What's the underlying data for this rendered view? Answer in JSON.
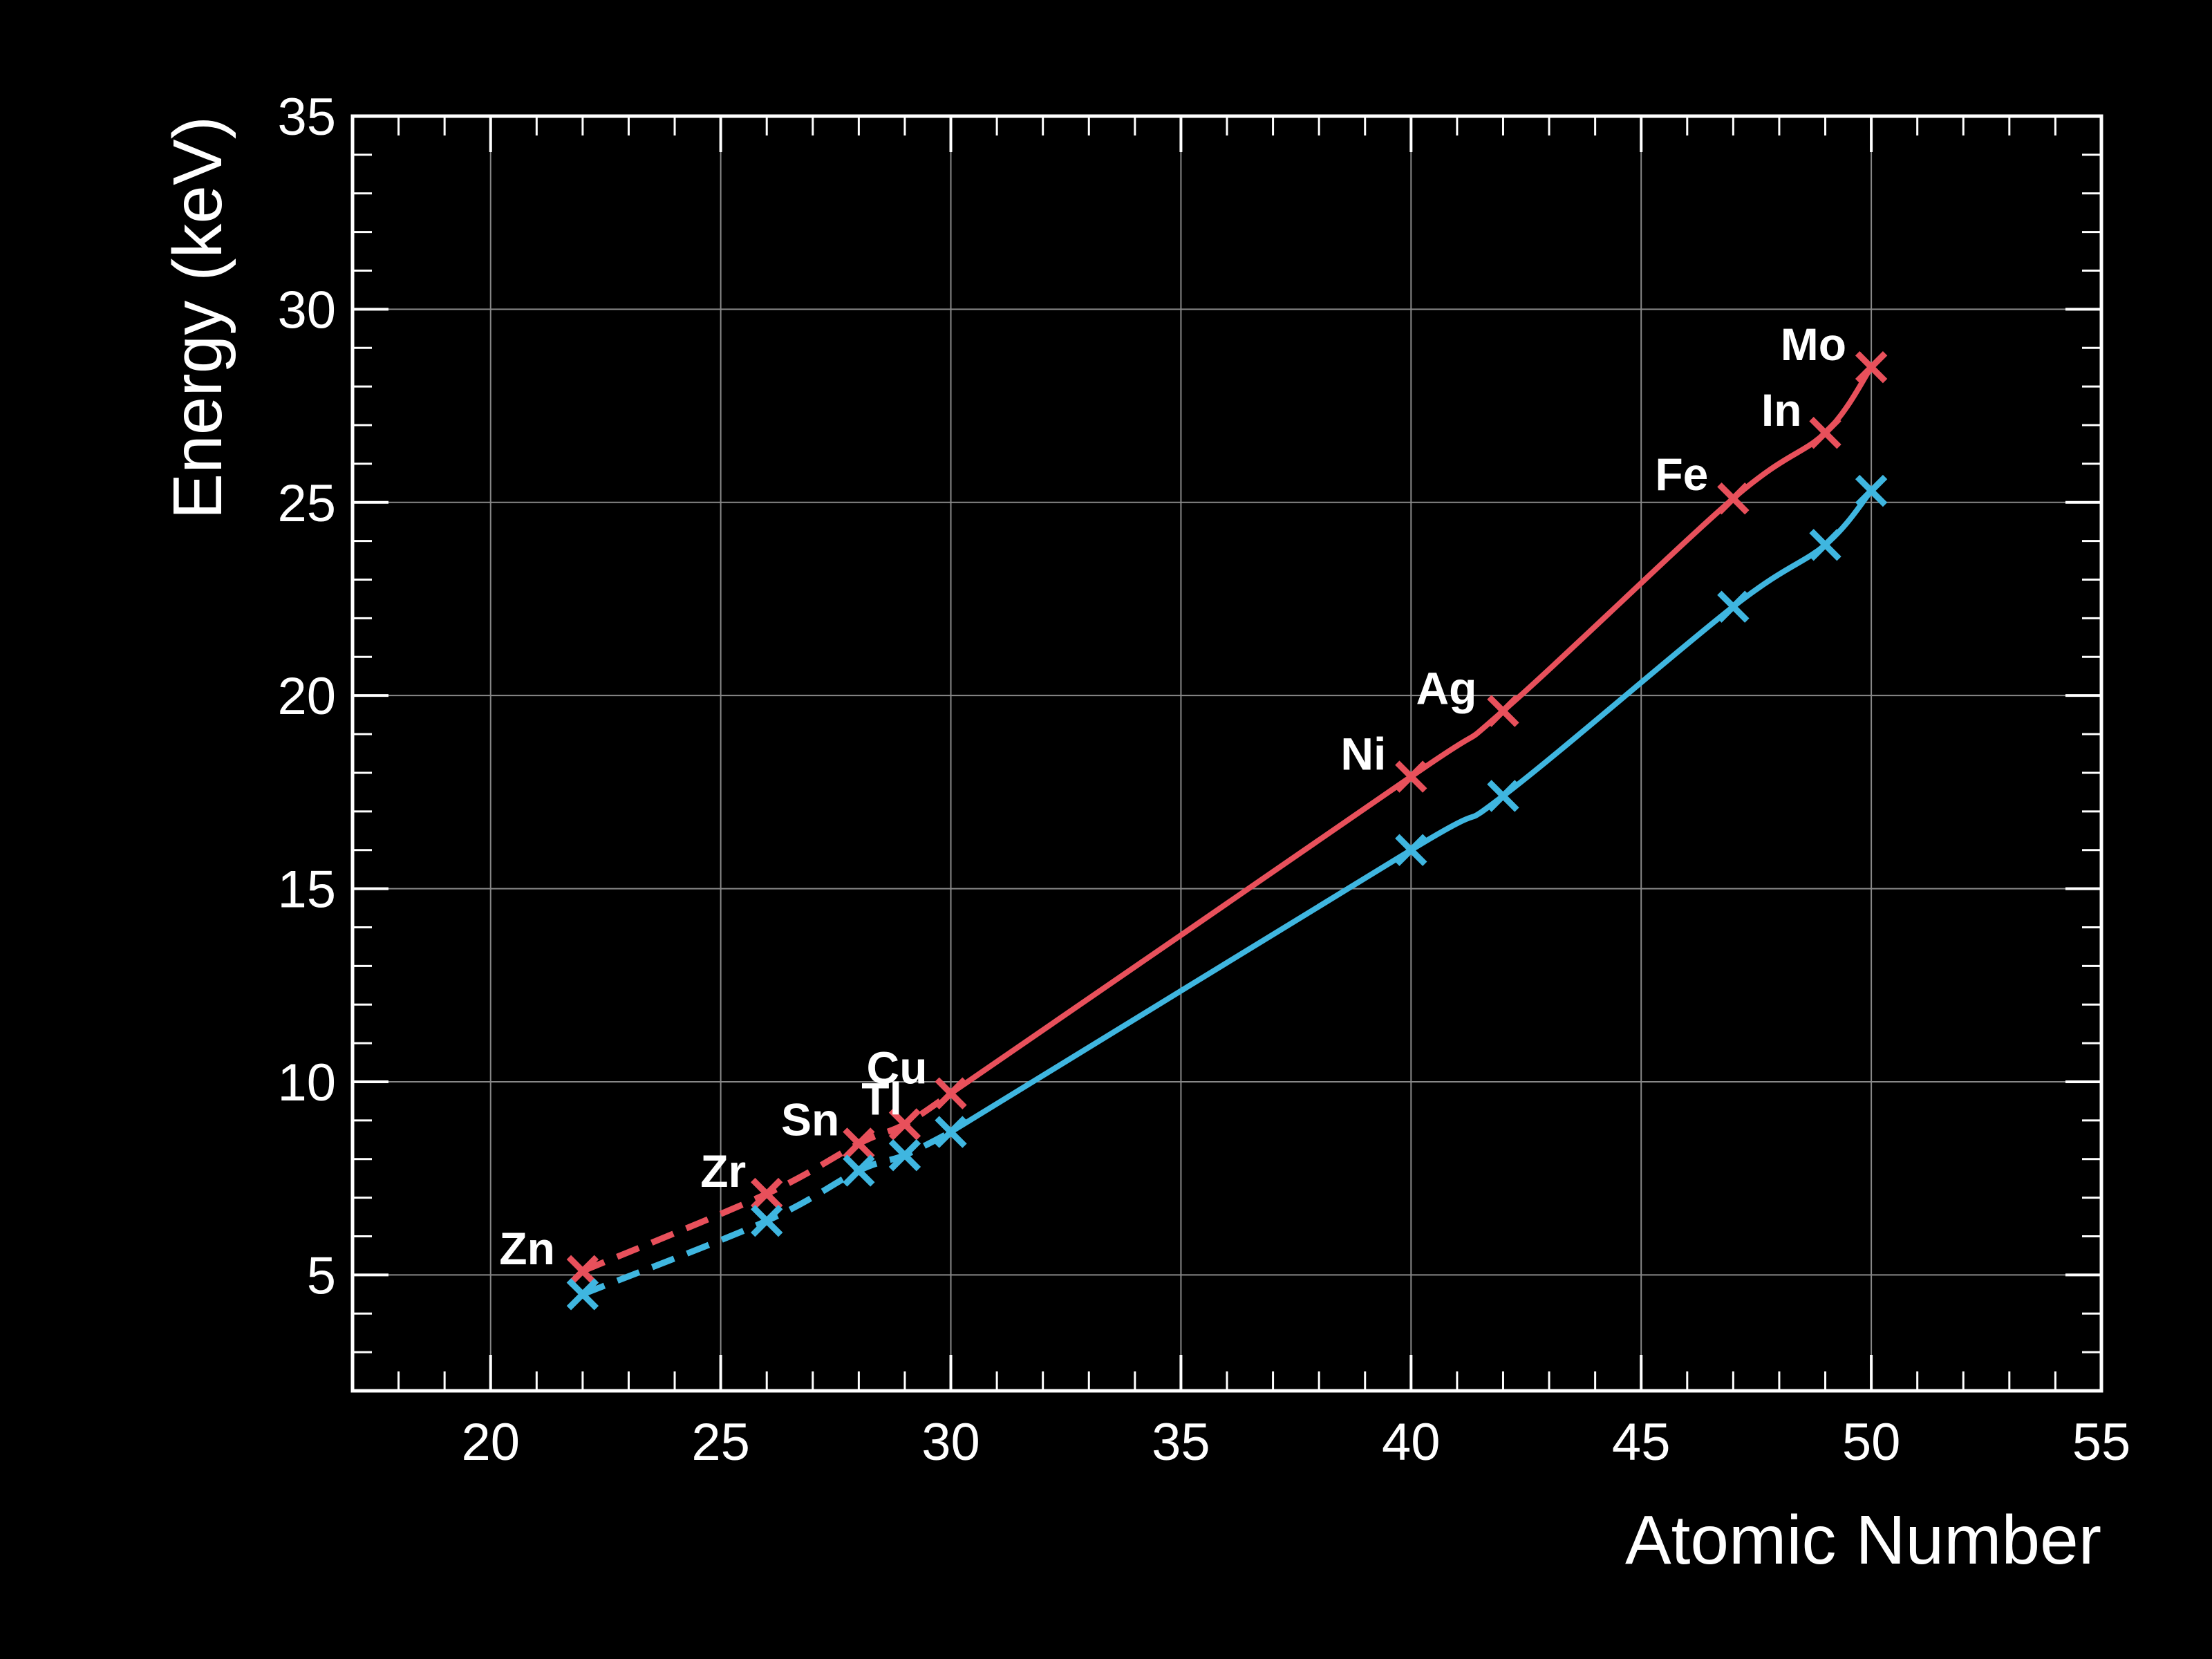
{
  "chart_data": {
    "type": "line",
    "title": "",
    "xlabel": "Atomic Number",
    "ylabel": "Energy (keV)",
    "xlim": [
      17,
      55
    ],
    "ylim": [
      2,
      35
    ],
    "xticks": [
      20,
      25,
      30,
      35,
      40,
      45,
      50,
      55
    ],
    "yticks": [
      5,
      10,
      15,
      20,
      25,
      30,
      35
    ],
    "grid": true,
    "colors": {
      "background": "#000000",
      "axes": "#ffffff",
      "grid": "#888888",
      "series_upper": "#e8505b",
      "series_lower": "#3fb6e0"
    },
    "series": [
      {
        "color": "#e8505b",
        "points": [
          {
            "x": 22,
            "y": 5.1,
            "label": "Zn"
          },
          {
            "x": 26,
            "y": 7.1,
            "label": "Zr"
          },
          {
            "x": 28,
            "y": 8.4,
            "label": "Sn"
          },
          {
            "x": 29,
            "y": 8.9,
            "label": "Tl"
          },
          {
            "x": 30,
            "y": 9.7,
            "label": "Cu"
          },
          {
            "x": 40,
            "y": 17.9,
            "label": "Ni"
          },
          {
            "x": 42,
            "y": 19.6,
            "label": "Ag"
          },
          {
            "x": 47,
            "y": 25.1,
            "label": "Fe"
          },
          {
            "x": 49,
            "y": 26.8,
            "label": "In"
          },
          {
            "x": 50,
            "y": 28.5,
            "label": "Mo"
          }
        ],
        "dashed_until_x": 30
      },
      {
        "color": "#3fb6e0",
        "points": [
          {
            "x": 22,
            "y": 4.5
          },
          {
            "x": 26,
            "y": 6.4
          },
          {
            "x": 28,
            "y": 7.7
          },
          {
            "x": 29,
            "y": 8.1
          },
          {
            "x": 30,
            "y": 8.7
          },
          {
            "x": 40,
            "y": 16.0
          },
          {
            "x": 42,
            "y": 17.4
          },
          {
            "x": 47,
            "y": 22.3
          },
          {
            "x": 49,
            "y": 23.9
          },
          {
            "x": 50,
            "y": 25.3
          }
        ],
        "dashed_until_x": 30
      }
    ]
  }
}
